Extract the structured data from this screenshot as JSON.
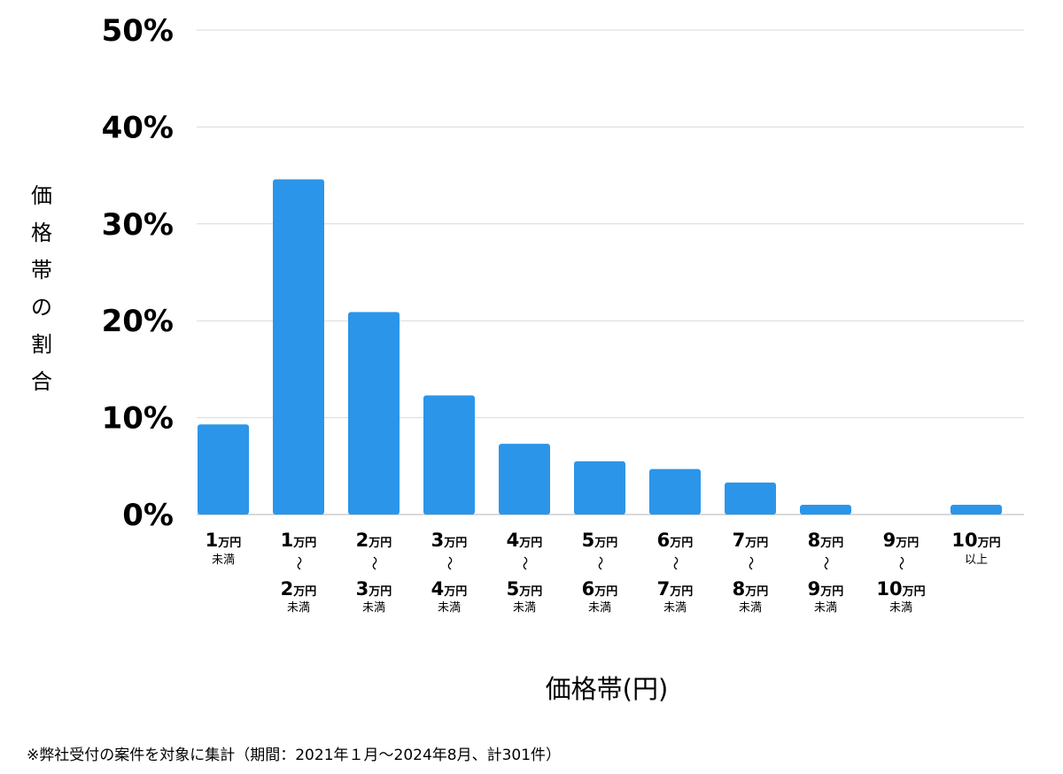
{
  "chart_data": {
    "type": "bar",
    "xlabel": "価格帯(円)",
    "ylabel": "価格帯の割合",
    "ylim": [
      0,
      50
    ],
    "yticks": [
      "50%",
      "40%",
      "30%",
      "20%",
      "10%",
      "0%"
    ],
    "grid": true,
    "bar_color": "#2b95e9",
    "categories": [
      {
        "from_num": "1",
        "from_unit": "万円",
        "to_num": "",
        "to_unit": "",
        "suffix": "未満"
      },
      {
        "from_num": "1",
        "from_unit": "万円",
        "to_num": "2",
        "to_unit": "万円",
        "suffix": "未満"
      },
      {
        "from_num": "2",
        "from_unit": "万円",
        "to_num": "3",
        "to_unit": "万円",
        "suffix": "未満"
      },
      {
        "from_num": "3",
        "from_unit": "万円",
        "to_num": "4",
        "to_unit": "万円",
        "suffix": "未満"
      },
      {
        "from_num": "4",
        "from_unit": "万円",
        "to_num": "5",
        "to_unit": "万円",
        "suffix": "未満"
      },
      {
        "from_num": "5",
        "from_unit": "万円",
        "to_num": "6",
        "to_unit": "万円",
        "suffix": "未満"
      },
      {
        "from_num": "6",
        "from_unit": "万円",
        "to_num": "7",
        "to_unit": "万円",
        "suffix": "未満"
      },
      {
        "from_num": "7",
        "from_unit": "万円",
        "to_num": "8",
        "to_unit": "万円",
        "suffix": "未満"
      },
      {
        "from_num": "8",
        "from_unit": "万円",
        "to_num": "9",
        "to_unit": "万円",
        "suffix": "未満"
      },
      {
        "from_num": "9",
        "from_unit": "万円",
        "to_num": "10",
        "to_unit": "万円",
        "suffix": "未満"
      },
      {
        "from_num": "10",
        "from_unit": "万円",
        "to_num": "",
        "to_unit": "",
        "suffix": "以上"
      }
    ],
    "range_symbol": "〜",
    "values": [
      9.3,
      34.6,
      20.9,
      12.3,
      7.3,
      5.5,
      4.7,
      3.3,
      1.0,
      0,
      1.0
    ]
  },
  "footnote": "※弊社受付の案件を対象に集計（期間：2021年１月〜2024年8月、計301件）"
}
